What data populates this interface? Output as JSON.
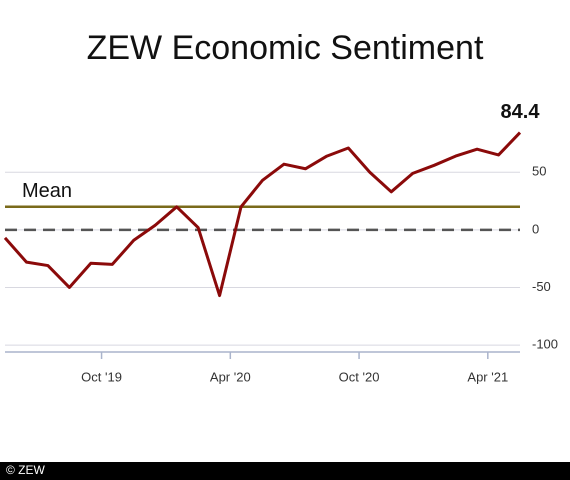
{
  "chart_data": {
    "type": "line",
    "title": "ZEW Economic Sentiment",
    "footer": "© ZEW",
    "categories": [
      null,
      null,
      null,
      null,
      null,
      "Oct '19",
      null,
      null,
      null,
      null,
      null,
      "Apr '20",
      null,
      null,
      null,
      null,
      null,
      "Oct '20",
      null,
      null,
      null,
      null,
      null,
      "Apr '21",
      null
    ],
    "series": [
      {
        "name": "ZEW Economic Sentiment",
        "color": "#8b0a0a",
        "values": [
          -7,
          -28,
          -31,
          -50,
          -29,
          -30,
          -9,
          4,
          20,
          2,
          -57,
          20,
          43,
          57,
          53,
          64,
          71,
          50,
          33,
          49,
          56,
          64,
          70,
          65,
          84.4
        ]
      }
    ],
    "mean": {
      "label": "Mean",
      "value": 20,
      "color": "#7a6a1a"
    },
    "reference_line": 0,
    "ylim": [
      -106,
      104
    ],
    "yticks": [
      -100,
      -50,
      0,
      50
    ],
    "grid": true
  }
}
